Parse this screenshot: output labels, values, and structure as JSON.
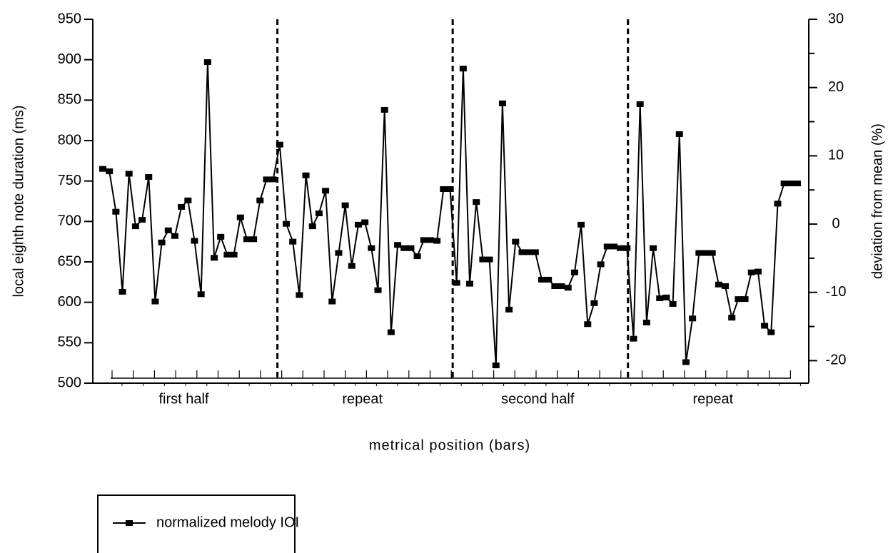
{
  "chart_data": {
    "type": "line",
    "ylabel": "local eighth note duration (ms)",
    "y2label": "deviation from mean (%)",
    "xlabel": "metrical position (bars)",
    "sections": [
      "first half",
      "repeat",
      "second half",
      "repeat"
    ],
    "ylim": [
      500,
      950
    ],
    "yticks": [
      500,
      550,
      600,
      650,
      700,
      750,
      800,
      850,
      900,
      950
    ],
    "y2lim": [
      -23.3,
      30
    ],
    "y2ticks": [
      -20,
      -10,
      0,
      10,
      20,
      30
    ],
    "y2_minor_ticks": [
      -15,
      -5,
      5,
      15,
      25
    ],
    "legend": "bottom-left",
    "categories": [
      null,
      null,
      null,
      null,
      null,
      null,
      null,
      null,
      null,
      null,
      null,
      null,
      null,
      null,
      null,
      null,
      null,
      null,
      null,
      null,
      null,
      null,
      null,
      null,
      null,
      null,
      null,
      null,
      null,
      null,
      null,
      null,
      null,
      null,
      null,
      null,
      null,
      null,
      null,
      null,
      null,
      null,
      null,
      null,
      null,
      null,
      null,
      null,
      null,
      null,
      null,
      null,
      null,
      null,
      null,
      null,
      null,
      null,
      null,
      null,
      null,
      null,
      null,
      null,
      null,
      null,
      null,
      null,
      null,
      null,
      null,
      null,
      null,
      null,
      null,
      null,
      null,
      null,
      null,
      null,
      null,
      null,
      null,
      null,
      null,
      null,
      null,
      null,
      null,
      null,
      null,
      null,
      null,
      null,
      null,
      null,
      null,
      null,
      null,
      null,
      null,
      null,
      null,
      null,
      null,
      null,
      null
    ],
    "series": [
      {
        "name": "normalized melody IOI",
        "color": "#000000",
        "values": [
          765,
          762,
          712,
          613,
          759,
          694,
          702,
          755,
          601,
          674,
          689,
          682,
          718,
          726,
          676,
          610,
          897,
          655,
          681,
          659,
          659,
          705,
          678,
          678,
          726,
          752,
          752,
          795,
          697,
          675,
          609,
          757,
          694,
          710,
          738,
          601,
          661,
          720,
          645,
          696,
          699,
          667,
          615,
          838,
          563,
          671,
          667,
          667,
          657,
          677,
          677,
          676,
          740,
          740,
          624,
          889,
          623,
          724,
          653,
          653,
          522,
          846,
          591,
          675,
          662,
          662,
          662,
          628,
          628,
          620,
          620,
          618,
          637,
          696,
          573,
          599,
          647,
          669,
          669,
          667,
          667,
          555,
          845,
          575,
          667,
          605,
          606,
          598,
          808,
          526,
          580,
          661,
          661,
          661,
          622,
          620,
          581,
          604,
          604,
          637,
          638,
          571,
          563,
          722,
          747,
          747,
          747
        ]
      }
    ]
  }
}
